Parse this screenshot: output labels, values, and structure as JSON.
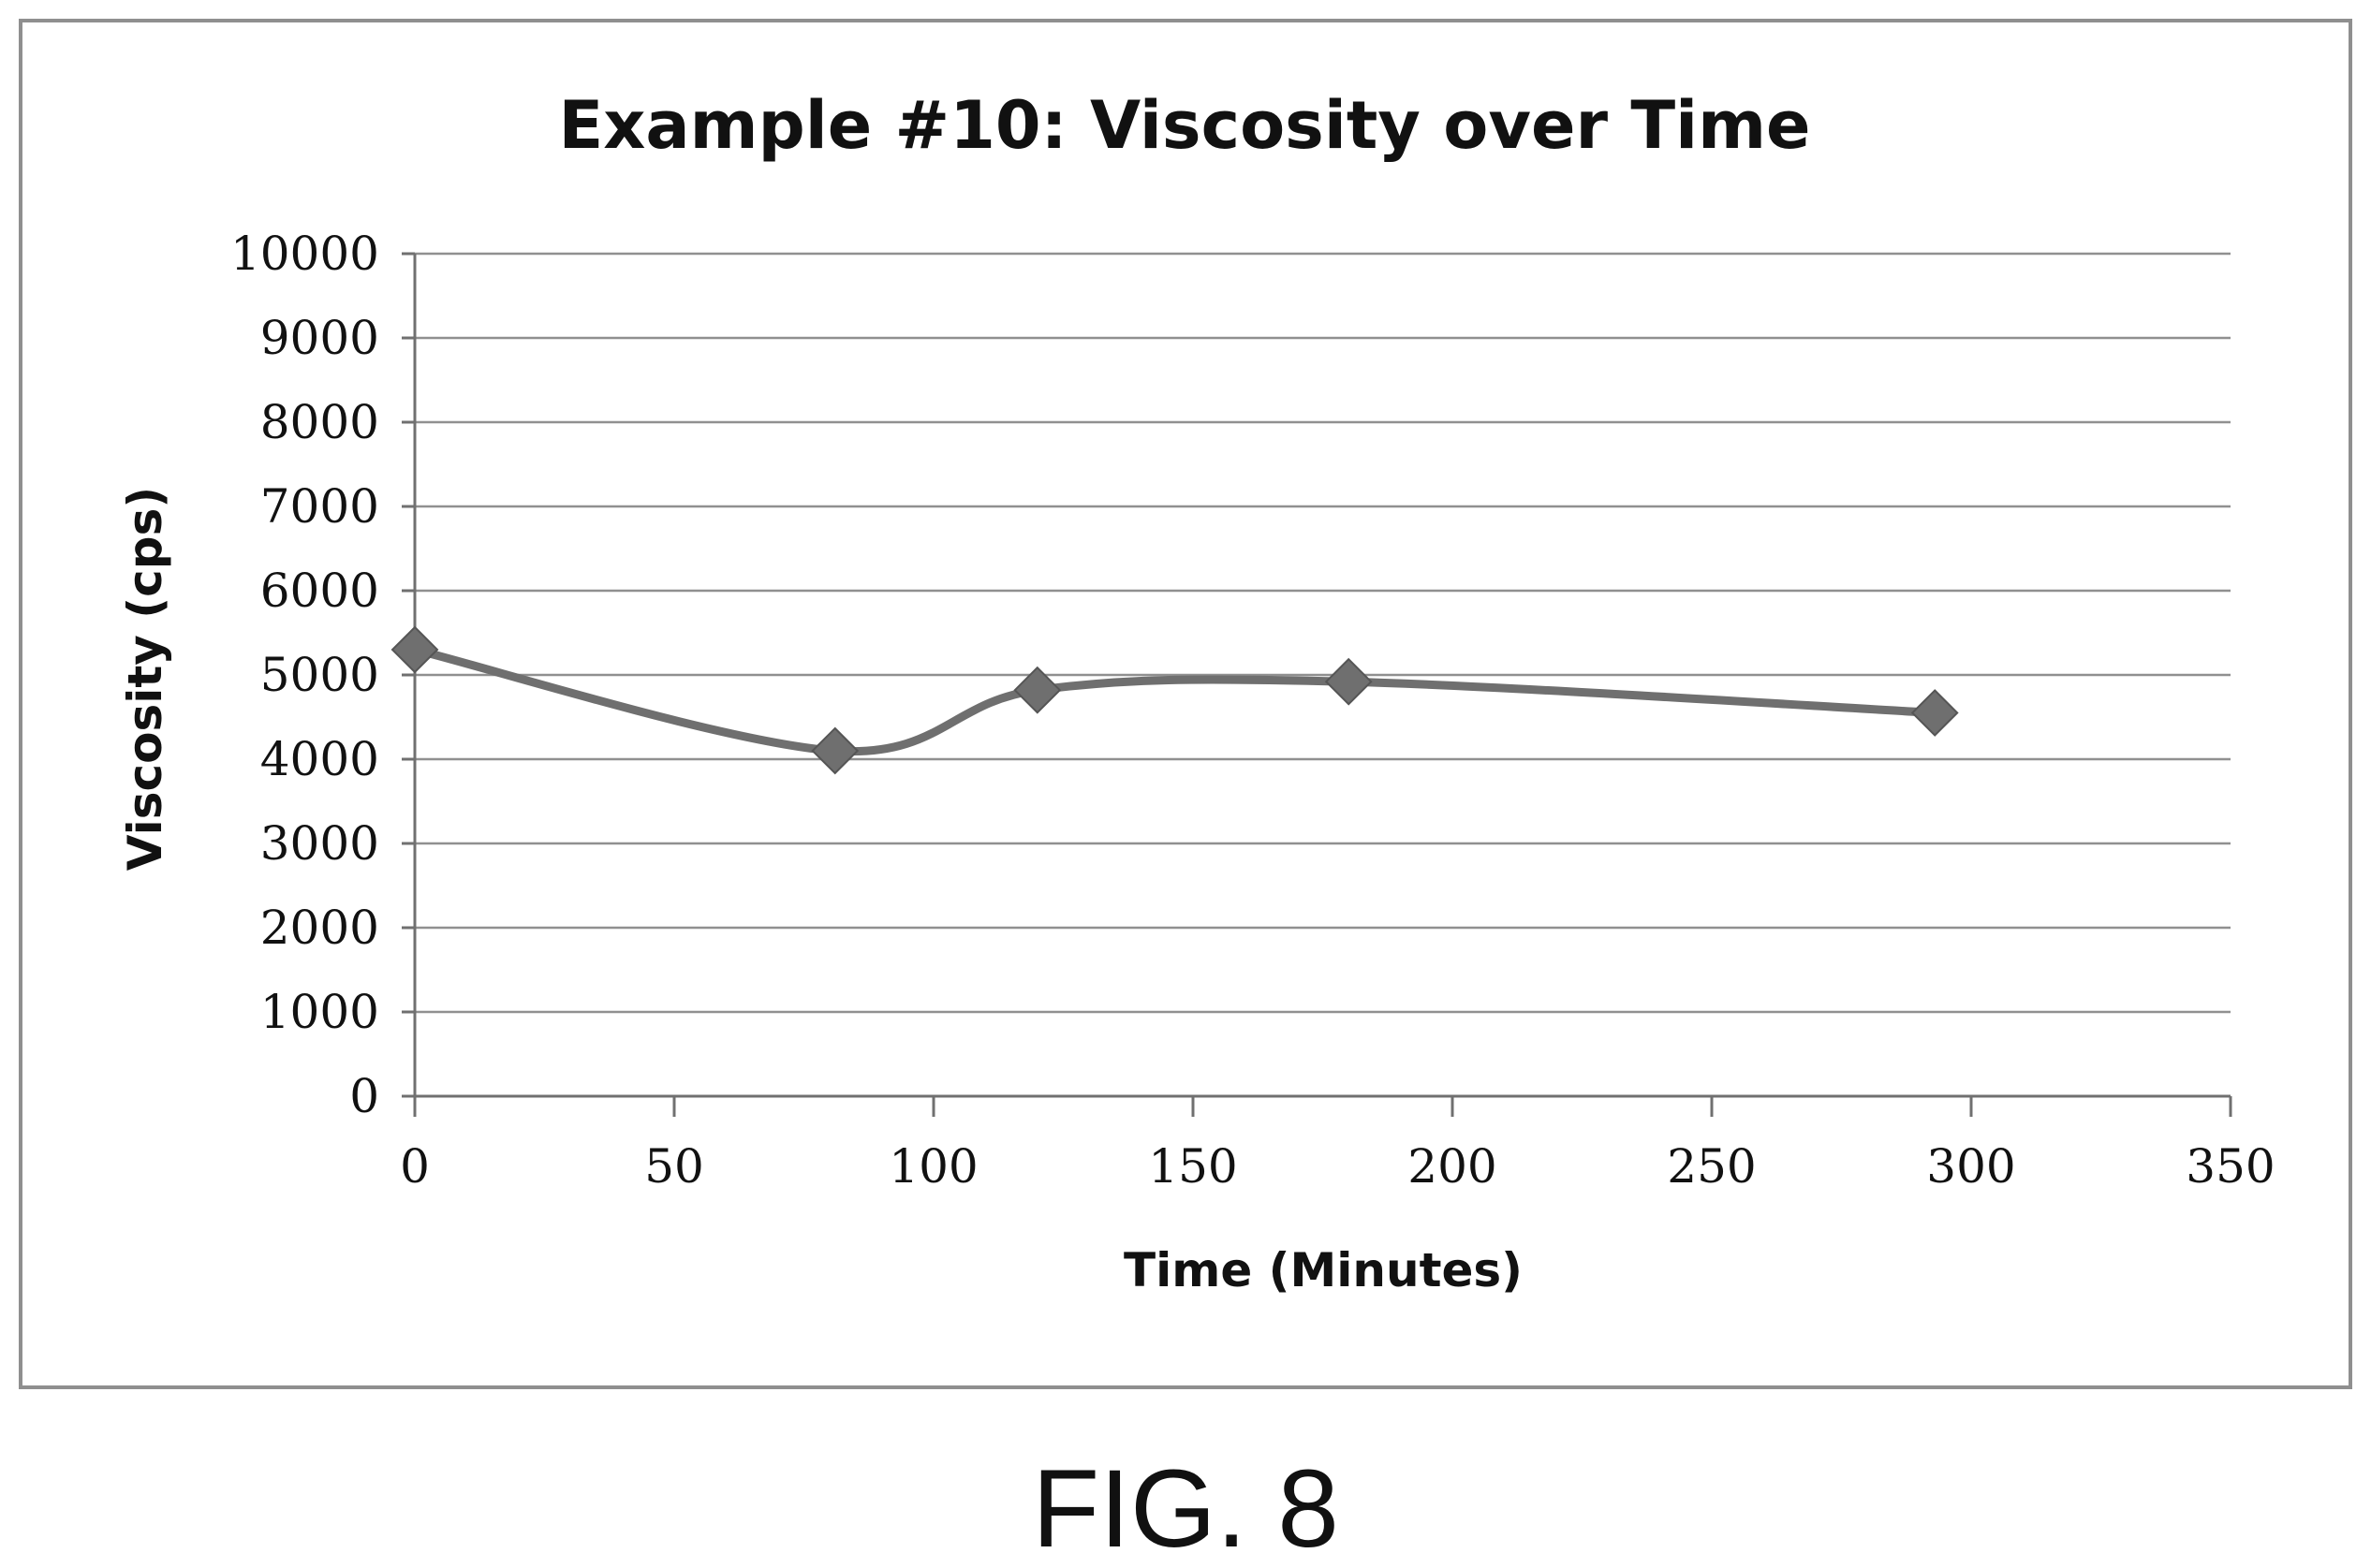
{
  "chart_data": {
    "type": "line",
    "title": "Example #10: Viscosity over Time",
    "xlabel": "Time (Minutes)",
    "ylabel": "Viscosity (cps)",
    "xlim": [
      0,
      350
    ],
    "ylim": [
      0,
      10000
    ],
    "x_ticks": [
      0,
      50,
      100,
      150,
      200,
      250,
      300,
      350
    ],
    "y_ticks": [
      0,
      1000,
      2000,
      3000,
      4000,
      5000,
      6000,
      7000,
      8000,
      9000,
      10000
    ],
    "grid": "horizontal",
    "smoothed": true,
    "marker": "diamond",
    "series": [
      {
        "x": [
          0,
          81,
          120,
          180,
          293
        ],
        "y": [
          5300,
          4100,
          4820,
          4920,
          4550
        ],
        "color": "#6f6f6f"
      }
    ]
  },
  "figure": {
    "caption": "FIG. 8"
  }
}
